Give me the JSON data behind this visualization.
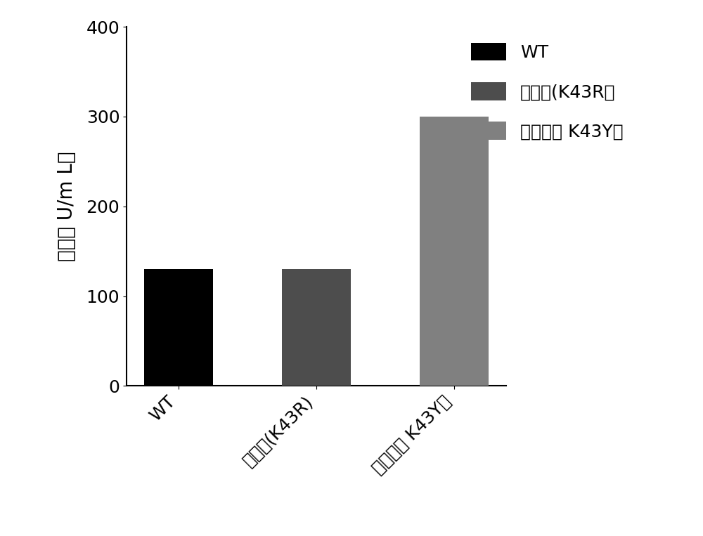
{
  "categories": [
    "WT",
    "亲本株(K43R)",
    "突变株（ K43Y）"
  ],
  "values": [
    130,
    130,
    300
  ],
  "bar_colors": [
    "#000000",
    "#4d4d4d",
    "#808080"
  ],
  "ylabel": "酶活（ U/m L）",
  "ylim": [
    0,
    400
  ],
  "yticks": [
    0,
    100,
    200,
    300,
    400
  ],
  "legend_labels": [
    "WT",
    "亲本株(K43R）",
    "突变株（ K43Y）"
  ],
  "legend_colors": [
    "#000000",
    "#4d4d4d",
    "#808080"
  ],
  "background_color": "#ffffff",
  "bar_width": 0.5,
  "tick_fontsize": 18,
  "label_fontsize": 20,
  "legend_fontsize": 18
}
